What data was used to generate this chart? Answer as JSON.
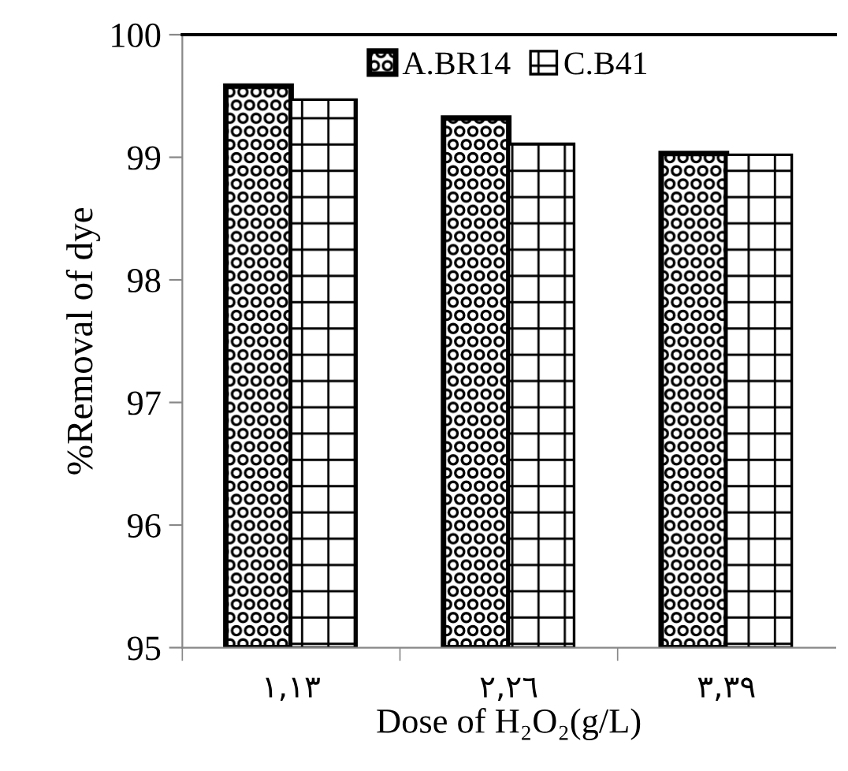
{
  "chart_data": {
    "type": "bar",
    "ylabel": "%Removal of dye",
    "xlabel": "Dose of H₂O₂(g/L)",
    "categories": [
      "١,١٣",
      "٢,٢٦",
      "٣,٣٩"
    ],
    "series": [
      {
        "name": "A.BR14",
        "color": "#000000",
        "values": [
          99.58,
          99.32,
          99.03
        ]
      },
      {
        "name": "C.B41",
        "color": "#000000",
        "values": [
          99.47,
          99.11,
          99.02
        ]
      }
    ],
    "ylim": [
      95,
      100
    ],
    "yticks": [
      95,
      96,
      97,
      98,
      99,
      100
    ],
    "grid": false,
    "legend": "top"
  }
}
